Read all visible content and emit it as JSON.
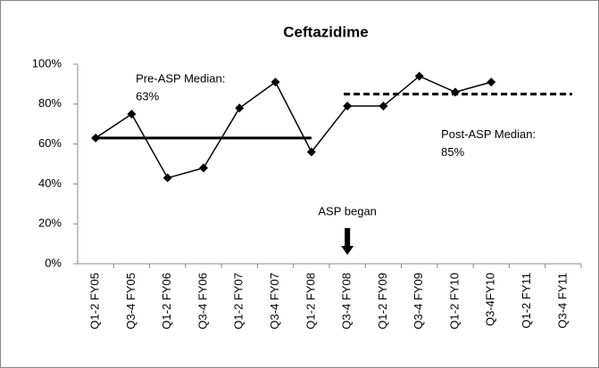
{
  "chart_data": {
    "type": "line",
    "title": "Ceftazidime",
    "categories": [
      "Q1-2 FY05",
      "Q3-4 FY05",
      "Q1-2 FY06",
      "Q3-4 FY06",
      "Q1-2 FY07",
      "Q3-4 FY07",
      "Q1-2 FY08",
      "Q3-4 FY08",
      "Q1-2 FY09",
      "Q3-4 FY09",
      "Q1-2 FY10",
      "Q3-4FY10",
      "Q1-2 FY11",
      "Q3-4 FY11"
    ],
    "values": [
      63,
      75,
      43,
      48,
      78,
      91,
      56,
      79,
      79,
      94,
      86,
      91,
      null,
      null
    ],
    "color": "#000000",
    "ylim": [
      0,
      100
    ],
    "yticks": [
      {
        "value": 0,
        "label": "0%"
      },
      {
        "value": 20,
        "label": "20%"
      },
      {
        "value": 40,
        "label": "40%"
      },
      {
        "value": 60,
        "label": "60%"
      },
      {
        "value": 80,
        "label": "80%"
      },
      {
        "value": 100,
        "label": "100%"
      }
    ],
    "grid": false,
    "reference_lines": [
      {
        "label": "Pre-ASP Median:",
        "value": 63,
        "value_label": "63%",
        "start_category": "Q1-2 FY05",
        "end_category": "Q1-2 FY08",
        "style": "solid"
      },
      {
        "label": "Post-ASP Median:",
        "value": 85,
        "value_label": "85%",
        "start_category": "Q3-4 FY08",
        "end_category": "Q3-4 FY11",
        "style": "dashed"
      }
    ],
    "annotation": {
      "text": "ASP began",
      "category": "Q3-4 FY08"
    }
  }
}
